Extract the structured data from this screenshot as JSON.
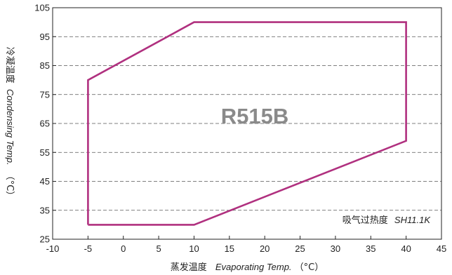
{
  "chart_data": {
    "type": "line",
    "refrigerant_label": "R515B",
    "annotation": {
      "cn": "吸气过热度",
      "en": "SH11.1K"
    },
    "xlabel": {
      "cn": "蒸发温度",
      "en": "Evaporating Temp.",
      "unit": "（°C）"
    },
    "ylabel": {
      "cn": "冷凝温度",
      "en": "Condensing Temp.",
      "unit": "（°C）"
    },
    "xlim": [
      -10,
      45
    ],
    "ylim": [
      25,
      105
    ],
    "xticks": [
      -10,
      -5,
      0,
      5,
      10,
      15,
      20,
      25,
      30,
      35,
      40,
      45
    ],
    "yticks": [
      25,
      35,
      45,
      55,
      65,
      75,
      85,
      95,
      105
    ],
    "grid": {
      "horizontal": true,
      "vertical": false,
      "style": "dashed"
    },
    "envelope": {
      "color": "#b0307f",
      "x": [
        -5,
        -5,
        10,
        40,
        40,
        10,
        -5
      ],
      "y": [
        30,
        80,
        100,
        100,
        59,
        30,
        30
      ]
    }
  }
}
